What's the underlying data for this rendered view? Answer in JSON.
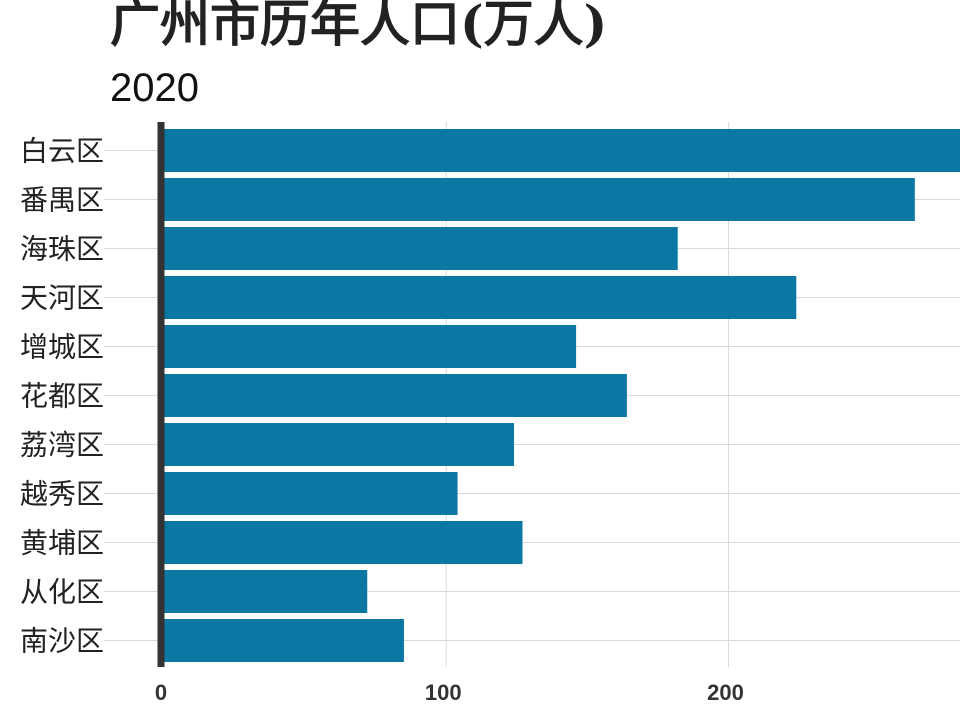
{
  "title": "广州市历年人口(万人)",
  "subtitle": "2020",
  "chart_data": {
    "type": "bar",
    "orientation": "horizontal",
    "title": "广州市历年人口(万人)",
    "subtitle": "2020",
    "categories": [
      "白云区",
      "番禺区",
      "海珠区",
      "天河区",
      "增城区",
      "花都区",
      "荔湾区",
      "越秀区",
      "黄埔区",
      "从化区",
      "南沙区"
    ],
    "values": [
      282,
      266,
      182,
      224,
      146,
      164,
      124,
      104,
      127,
      72,
      85
    ],
    "xlim": [
      0,
      282
    ],
    "xticks": [
      0,
      100,
      200
    ],
    "tick_labels": [
      "0",
      "100",
      "200"
    ],
    "grid": true,
    "bar_color": "#0b77a3",
    "axis_color": "#333333",
    "grid_color": "#d9d9d9"
  }
}
